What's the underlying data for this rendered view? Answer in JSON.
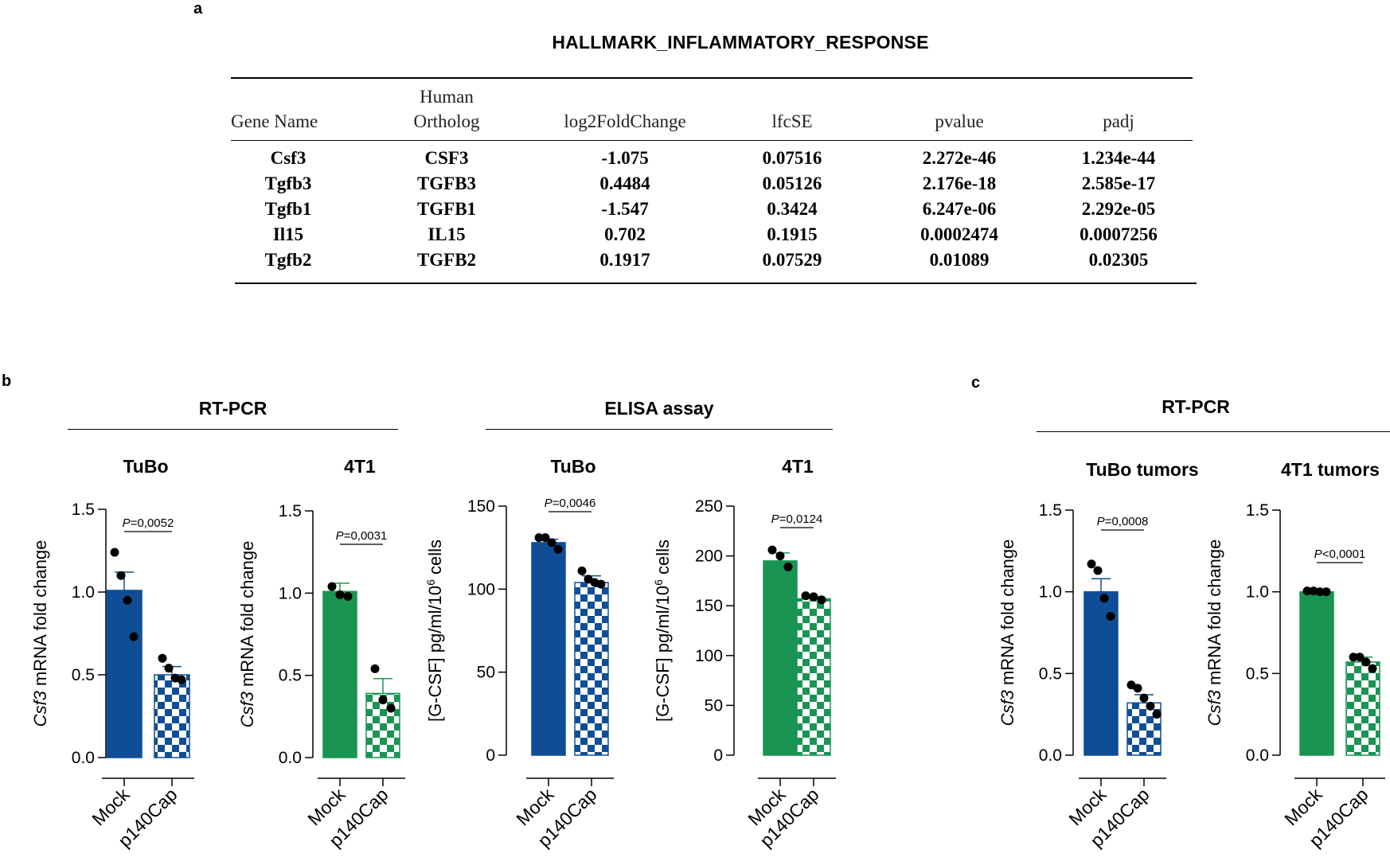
{
  "panels": {
    "a": "a",
    "b": "b",
    "c": "c"
  },
  "table": {
    "title": "HALLMARK_INFLAMMATORY_RESPONSE",
    "headers": [
      "Gene Name",
      "Human\nOrtholog",
      "log2FoldChange",
      "lfcSE",
      "pvalue",
      "padj"
    ],
    "header_human_line1": "Human",
    "header_human_line2": "Ortholog",
    "rows": [
      [
        "Csf3",
        "CSF3",
        "-1.075",
        "0.07516",
        "2.272e-46",
        "1.234e-44"
      ],
      [
        "Tgfb3",
        "TGFB3",
        "0.4484",
        "0.05126",
        "2.176e-18",
        "2.585e-17"
      ],
      [
        "Tgfb1",
        "TGFB1",
        "-1.547",
        "0.3424",
        "6.247e-06",
        "2.292e-05"
      ],
      [
        "Il15",
        "IL15",
        "0.702",
        "0.1915",
        "0.0002474",
        "0.0007256"
      ],
      [
        "Tgfb2",
        "TGFB2",
        "0.1917",
        "0.07529",
        "0.01089",
        "0.02305"
      ]
    ]
  },
  "sections": {
    "b_rtpcr": "RT-PCR",
    "b_elisa": "ELISA assay",
    "c_rtpcr": "RT-PCR"
  },
  "colors": {
    "blue": "#0f4e96",
    "green": "#1a9452"
  },
  "chart_data": [
    {
      "type": "bar",
      "title": "TuBo",
      "ylabel_italic": "Csf3",
      "ylabel_rest": " mRNA fold change",
      "categories": [
        "Mock",
        "p140Cap"
      ],
      "values": [
        1.01,
        0.5
      ],
      "errors": [
        0.11,
        0.05
      ],
      "points": [
        [
          1.24,
          1.1,
          0.95,
          0.73
        ],
        [
          0.6,
          0.54,
          0.48,
          0.47
        ]
      ],
      "ylim": [
        0,
        1.5
      ],
      "yticks": [
        0.0,
        0.5,
        1.0,
        1.5
      ],
      "ytick_labels": [
        "0.0",
        "0.5",
        "1.0",
        "1.5"
      ],
      "pvalue": "P=0,0052",
      "color": "blue"
    },
    {
      "type": "bar",
      "title": "4T1",
      "ylabel_italic": "Csf3",
      "ylabel_rest": " mRNA fold change",
      "categories": [
        "Mock",
        "p140Cap"
      ],
      "values": [
        1.01,
        0.39
      ],
      "errors": [
        0.05,
        0.09
      ],
      "points": [
        [
          1.04,
          0.99,
          0.98
        ],
        [
          0.54,
          0.35,
          0.3
        ]
      ],
      "ylim": [
        0,
        1.5
      ],
      "yticks": [
        0.0,
        0.5,
        1.0,
        1.5
      ],
      "ytick_labels": [
        "0.0",
        "0.5",
        "1.0",
        "1.5"
      ],
      "pvalue": "P=0,0031",
      "color": "green"
    },
    {
      "type": "bar",
      "title": "TuBo",
      "ylabel": "[G-CSF] pg/ml/10",
      "ylabel_sup": "6",
      "ylabel_rest": " cells",
      "categories": [
        "Mock",
        "p140Cap"
      ],
      "values": [
        128,
        104
      ],
      "errors": [
        2,
        4
      ],
      "points": [
        [
          131,
          131,
          128,
          124
        ],
        [
          111,
          106,
          104,
          103
        ]
      ],
      "ylim": [
        0,
        150
      ],
      "yticks": [
        0,
        50,
        100,
        150
      ],
      "ytick_labels": [
        "0",
        "50",
        "100",
        "150"
      ],
      "pvalue": "P=0,0046",
      "color": "blue"
    },
    {
      "type": "bar",
      "title": "4T1",
      "ylabel": "[G-CSF] pg/ml/10",
      "ylabel_sup": "6",
      "ylabel_rest": " cells",
      "categories": [
        "Mock",
        "p140Cap"
      ],
      "values": [
        195,
        157
      ],
      "errors": [
        8,
        2
      ],
      "points": [
        [
          206,
          200,
          189
        ],
        [
          160,
          159,
          156
        ]
      ],
      "ylim": [
        0,
        250
      ],
      "yticks": [
        0,
        50,
        100,
        150,
        200,
        250
      ],
      "ytick_labels": [
        "0",
        "50",
        "100",
        "150",
        "200",
        "250"
      ],
      "pvalue": "P=0,0124",
      "color": "green"
    },
    {
      "type": "bar",
      "title": "TuBo tumors",
      "ylabel_italic": "Csf3",
      "ylabel_rest": " mRNA fold change",
      "categories": [
        "Mock",
        "p140Cap"
      ],
      "values": [
        1.0,
        0.32
      ],
      "errors": [
        0.08,
        0.05
      ],
      "points": [
        [
          1.17,
          1.13,
          0.96,
          0.85
        ],
        [
          0.43,
          0.41,
          0.35,
          0.3,
          0.25
        ]
      ],
      "ylim": [
        0,
        1.5
      ],
      "yticks": [
        0.0,
        0.5,
        1.0,
        1.5
      ],
      "ytick_labels": [
        "0.0",
        "0.5",
        "1.0",
        "1.5"
      ],
      "pvalue": "P=0,0008",
      "color": "blue"
    },
    {
      "type": "bar",
      "title": "4T1 tumors",
      "ylabel_italic": "Csf3",
      "ylabel_rest": " mRNA fold change",
      "categories": [
        "Mock",
        "p140Cap"
      ],
      "values": [
        1.0,
        0.57
      ],
      "errors": [
        0.005,
        0.03
      ],
      "points": [
        [
          1.005,
          1.005,
          1.0,
          1.0
        ],
        [
          0.6,
          0.6,
          0.57,
          0.53
        ]
      ],
      "ylim": [
        0,
        1.5
      ],
      "yticks": [
        0.0,
        0.5,
        1.0,
        1.5
      ],
      "ytick_labels": [
        "0.0",
        "0.5",
        "1.0",
        "1.5"
      ],
      "pvalue": "P<0,0001",
      "color": "green"
    }
  ]
}
